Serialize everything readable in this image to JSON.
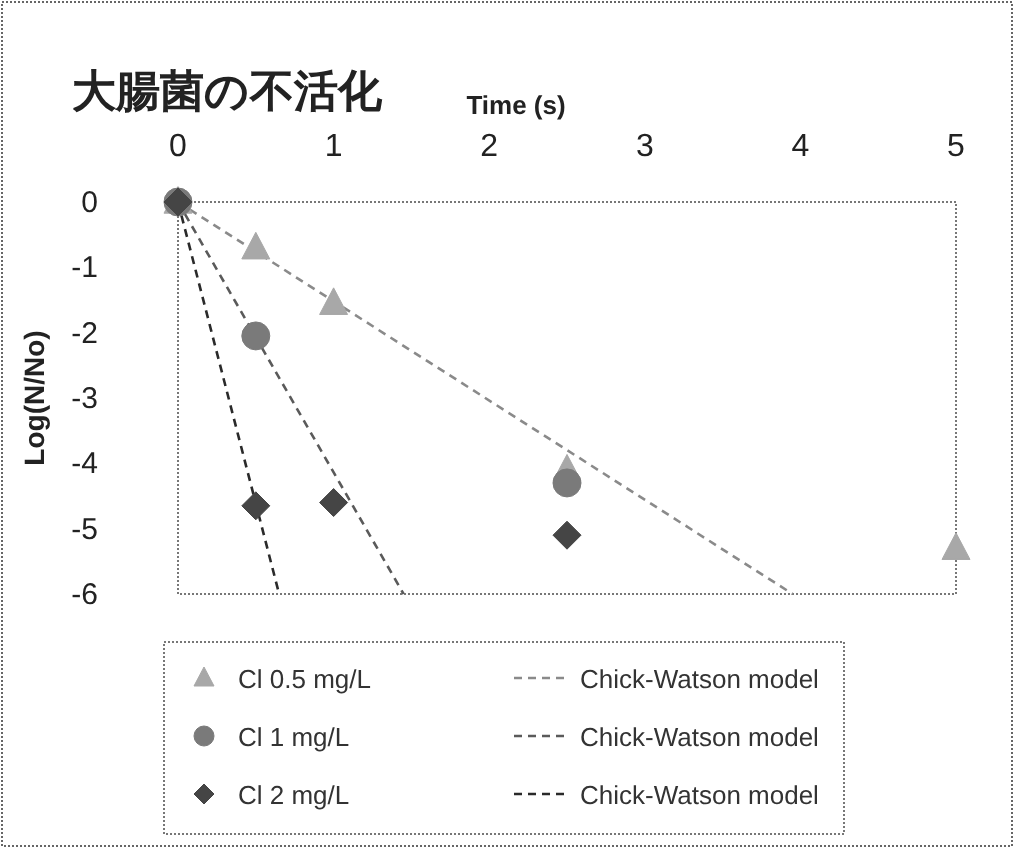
{
  "chart_data": {
    "type": "scatter",
    "title": "大腸菌の不活化",
    "xlabel": "Time (s)",
    "ylabel": "Log(N/No)",
    "xlim": [
      0,
      5
    ],
    "xticks": [
      0,
      1,
      2,
      3,
      4,
      5
    ],
    "ylim": [
      -6,
      0
    ],
    "yticks": [
      0,
      -1,
      -2,
      -3,
      -4,
      -5,
      -6
    ],
    "grid": false,
    "legend": "bottom",
    "series": [
      {
        "name": "Cl 0.5 mg/L",
        "marker": "triangle",
        "color": "#a8a8a8",
        "x": [
          0,
          0.5,
          1,
          2.5,
          5
        ],
        "values": [
          0,
          -0.7,
          -1.55,
          -4.1,
          -5.3
        ]
      },
      {
        "name": "Cl 1 mg/L",
        "marker": "circle",
        "color": "#7a7a7a",
        "x": [
          0,
          0.5,
          2.5
        ],
        "values": [
          0,
          -2.05,
          -4.3
        ]
      },
      {
        "name": "Cl 2 mg/L",
        "marker": "diamond",
        "color": "#454545",
        "x": [
          0,
          0.5,
          1,
          2.5
        ],
        "values": [
          0,
          -4.65,
          -4.6,
          -5.1
        ]
      },
      {
        "name": "Chick-Watson model",
        "type": "line",
        "marker": "none",
        "line_style": "dashed",
        "color": "#8a8a8a",
        "x": [
          0,
          3.95
        ],
        "values": [
          0,
          -6
        ]
      },
      {
        "name": "Chick-Watson model",
        "type": "line",
        "marker": "none",
        "line_style": "dashed",
        "color": "#5a5a5a",
        "x": [
          0,
          1.45
        ],
        "values": [
          0,
          -6
        ]
      },
      {
        "name": "Chick-Watson model",
        "type": "line",
        "marker": "none",
        "line_style": "dashed",
        "color": "#2a2a2a",
        "x": [
          0,
          0.65
        ],
        "values": [
          0,
          -6
        ]
      }
    ]
  }
}
